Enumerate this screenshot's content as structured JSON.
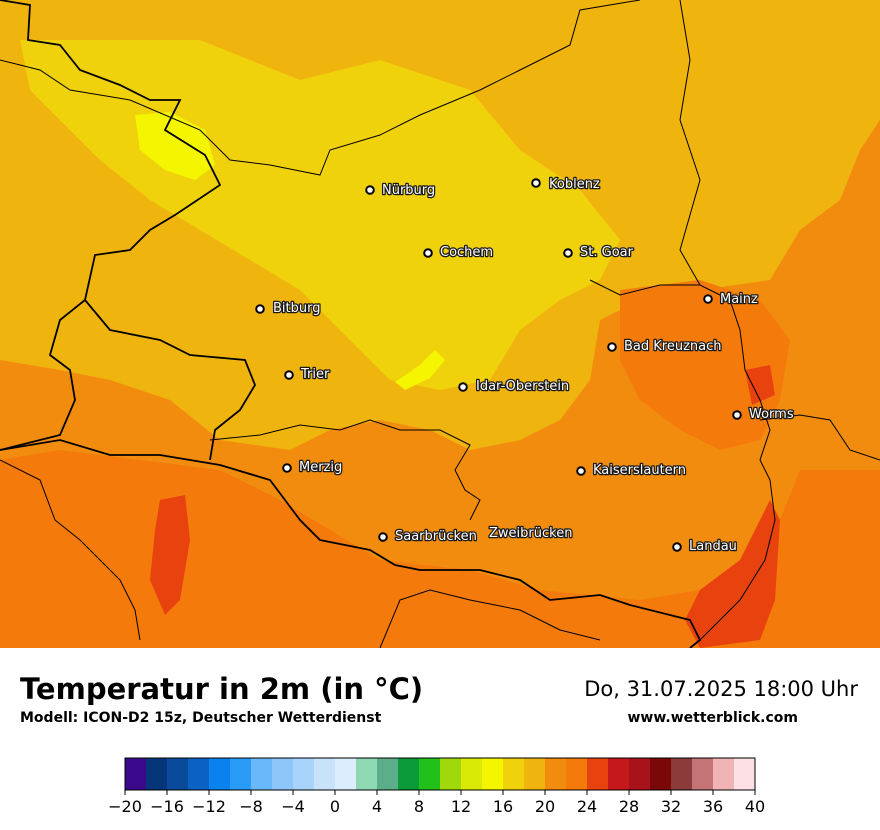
{
  "map": {
    "cities": [
      {
        "name": "Nürburg"
      },
      {
        "name": "Koblenz"
      },
      {
        "name": "Cochem"
      },
      {
        "name": "St. Goar"
      },
      {
        "name": "Mainz"
      },
      {
        "name": "Bitburg"
      },
      {
        "name": "Bad Kreuznach"
      },
      {
        "name": "Trier"
      },
      {
        "name": "Idar-Oberstein"
      },
      {
        "name": "Worms"
      },
      {
        "name": "Merzig"
      },
      {
        "name": "Kaiserslautern"
      },
      {
        "name": "Saarbrücken"
      },
      {
        "name": "Zweibrücken"
      },
      {
        "name": "Landau"
      }
    ],
    "colors": {
      "base": "#f28c0f",
      "warm": "#f47a0c",
      "hot": "#e8430e",
      "cool": "#f0b40e",
      "mild": "#f0d20c",
      "coolest": "#f5f500"
    }
  },
  "footer": {
    "title": "Temperatur in 2m (in °C)",
    "model": "Modell: ICON-D2 15z, Deutscher Wetterdienst",
    "datetime": "Do, 31.07.2025 18:00 Uhr",
    "website": "www.wetterblick.com"
  },
  "legend": {
    "ticks": [
      "−20",
      "−16",
      "−12",
      "−8",
      "−4",
      "0",
      "4",
      "8",
      "12",
      "16",
      "20",
      "24",
      "28",
      "32",
      "36",
      "40"
    ],
    "colors": [
      "#3b0a8c",
      "#06357a",
      "#0a4a9a",
      "#0b62c4",
      "#0a82ee",
      "#2a9cf8",
      "#6ab8f9",
      "#8ec6fa",
      "#a8d4fb",
      "#c8e2fc",
      "#dcedfd",
      "#8fd8b4",
      "#5cae8a",
      "#0a9a3a",
      "#22c01a",
      "#a0d80c",
      "#d8ea06",
      "#f5f500",
      "#f0d20c",
      "#f0b40e",
      "#f28c0f",
      "#f47a0c",
      "#e8430e",
      "#c4181a",
      "#a8121a",
      "#7a0808",
      "#8c3a3a",
      "#c47474",
      "#f0b4b4",
      "#fce0e4"
    ]
  }
}
